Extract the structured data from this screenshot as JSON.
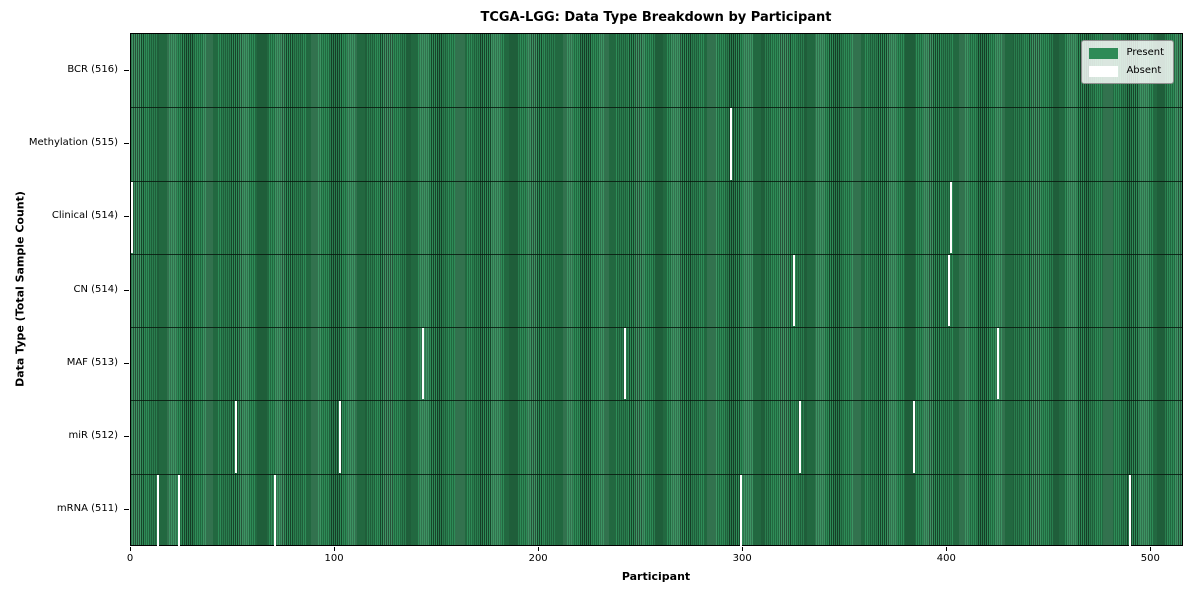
{
  "colors": {
    "present": "#2e8b57",
    "absent": "#ffffff",
    "bar_edge": "#17452a",
    "plot_border": "#000000",
    "legend_background": "rgba(255,255,255,0.82)"
  },
  "chart_data": {
    "type": "heatmap",
    "title": "TCGA-LGG: Data Type Breakdown by Participant",
    "xlabel": "Participant",
    "ylabel": "Data Type (Total Sample Count)",
    "x_ticks": [
      0,
      100,
      200,
      300,
      400,
      500
    ],
    "xlim": [
      0,
      516
    ],
    "n_participants": 516,
    "grid": false,
    "legend": {
      "position": "upper right",
      "entries": [
        {
          "label": "Present",
          "color": "#2e8b57"
        },
        {
          "label": "Absent",
          "color": "#ffffff"
        }
      ]
    },
    "rows": [
      {
        "label": "BCR (516)",
        "data_type": "BCR",
        "present_count": 516,
        "absent_count": 0,
        "absent_participants": []
      },
      {
        "label": "Methylation (515)",
        "data_type": "Methylation",
        "present_count": 515,
        "absent_count": 1,
        "absent_participants": [
          294
        ]
      },
      {
        "label": "Clinical (514)",
        "data_type": "Clinical",
        "present_count": 514,
        "absent_count": 2,
        "absent_participants": [
          0,
          402
        ]
      },
      {
        "label": "CN (514)",
        "data_type": "CN",
        "present_count": 514,
        "absent_count": 2,
        "absent_participants": [
          325,
          401
        ]
      },
      {
        "label": "MAF (513)",
        "data_type": "MAF",
        "present_count": 513,
        "absent_count": 3,
        "absent_participants": [
          143,
          242,
          425
        ]
      },
      {
        "label": "miR (512)",
        "data_type": "miR",
        "present_count": 512,
        "absent_count": 4,
        "absent_participants": [
          51,
          102,
          328,
          384
        ]
      },
      {
        "label": "mRNA (511)",
        "data_type": "mRNA",
        "present_count": 511,
        "absent_count": 5,
        "absent_participants": [
          13,
          23,
          70,
          299,
          490
        ]
      }
    ]
  }
}
